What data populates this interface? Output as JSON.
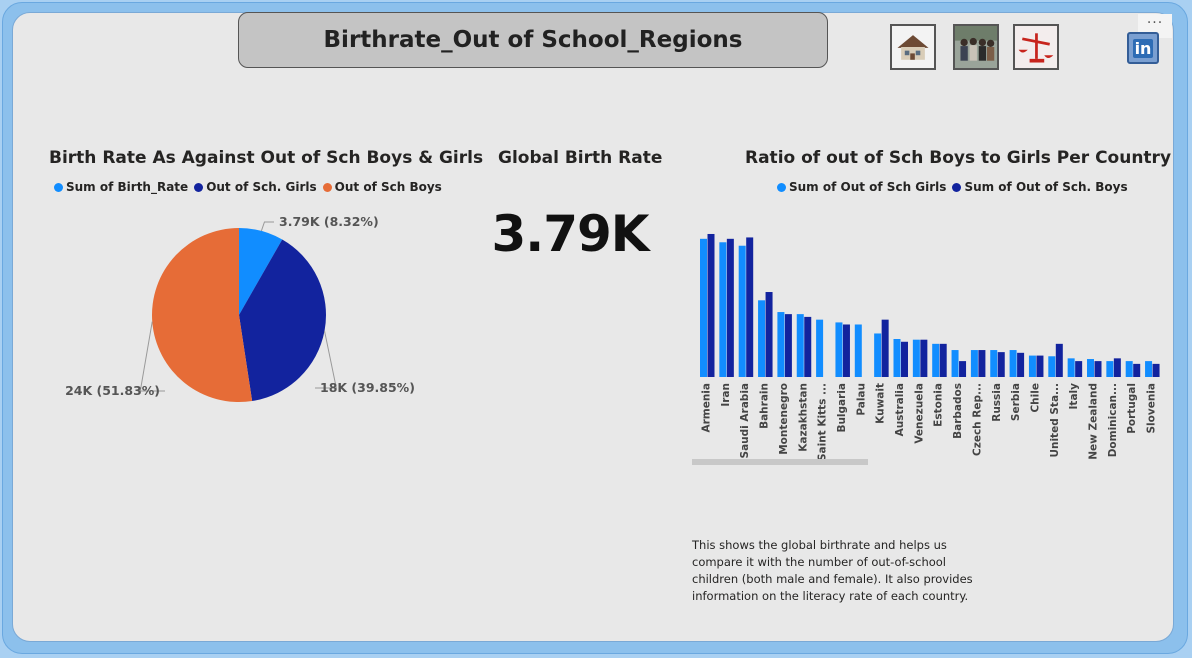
{
  "header": {
    "title": "Birthrate_Out of School_Regions"
  },
  "nav": {
    "buttons": [
      {
        "icon": "house-icon"
      },
      {
        "icon": "students-photo-icon"
      },
      {
        "icon": "scales-icon"
      }
    ],
    "linkedin_label": "in",
    "more_label": "···"
  },
  "pie": {
    "title": "Birth Rate As Against Out of Sch Boys & Girls",
    "legend": [
      {
        "label": "Sum of Birth_Rate",
        "color": "#118dff"
      },
      {
        "label": "Out of Sch. Girls",
        "color": "#12239e"
      },
      {
        "label": "Out of Sch Boys",
        "color": "#e66c37"
      }
    ]
  },
  "kpi": {
    "title": "Global Birth Rate",
    "value": "3.79K"
  },
  "bar": {
    "title": "Ratio of out of Sch Boys to Girls Per Country",
    "legend": [
      {
        "label": "Sum of Out of Sch Girls",
        "color": "#118dff"
      },
      {
        "label": "Sum of Out of Sch. Boys",
        "color": "#12239e"
      }
    ]
  },
  "note": {
    "text": "This shows the global birthrate and helps us compare it with the number of out-of-school children (both male and female). It also provides information on the literacy rate of each country."
  },
  "chart_data": [
    {
      "type": "pie",
      "title": "Birth Rate As Against Out of Sch Boys & Girls",
      "slices": [
        {
          "name": "Sum of Birth_Rate",
          "value": 3790,
          "label": "3.79K (8.32%)",
          "color": "#118dff"
        },
        {
          "name": "Out of Sch. Girls",
          "value": 18000,
          "label": "18K (39.85%)",
          "color": "#12239e"
        },
        {
          "name": "Out of Sch Boys",
          "value": 24000,
          "label": "24K (51.83%)",
          "color": "#e66c37"
        }
      ],
      "legend": "top"
    },
    {
      "type": "bar",
      "title": "Ratio of out of Sch Boys to Girls Per Country",
      "categories": [
        "Armenia",
        "Iran",
        "Saudi Arabia",
        "Bahrain",
        "Montenegro",
        "Kazakhstan",
        "Saint Kitts ...",
        "Bulgaria",
        "Palau",
        "Kuwait",
        "Australia",
        "Venezuela",
        "Estonia",
        "Barbados",
        "Czech Rep...",
        "Russia",
        "Serbia",
        "Chile",
        "United Sta...",
        "Italy",
        "New Zealand",
        "Dominican...",
        "Portugal",
        "Slovenia"
      ],
      "series": [
        {
          "name": "Sum of Out of Sch Girls",
          "color": "#118dff",
          "values": [
            1000,
            975,
            950,
            555,
            470,
            455,
            415,
            395,
            380,
            315,
            275,
            270,
            240,
            195,
            195,
            195,
            195,
            155,
            150,
            135,
            130,
            115,
            115,
            115
          ]
        },
        {
          "name": "Sum of Out of Sch. Boys",
          "color": "#12239e",
          "values": [
            1035,
            1000,
            1010,
            615,
            455,
            435,
            null,
            380,
            null,
            415,
            255,
            270,
            240,
            115,
            195,
            180,
            175,
            155,
            240,
            115,
            115,
            135,
            95,
            95
          ]
        }
      ],
      "ylim": [
        0,
        1100
      ],
      "legend": "top",
      "grid": false
    }
  ]
}
